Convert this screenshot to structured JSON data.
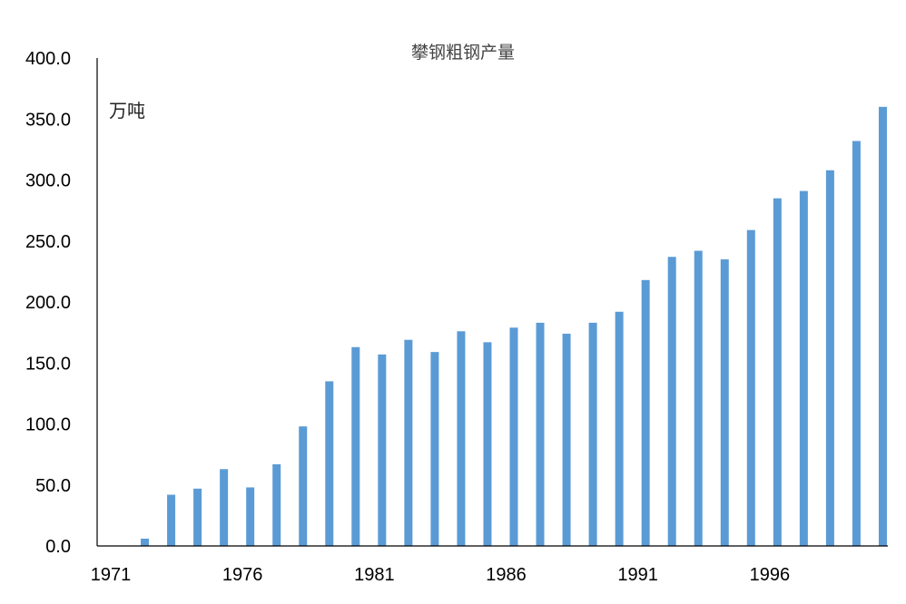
{
  "chart_data": {
    "type": "bar",
    "title": "攀钢粗钢产量",
    "ylabel": "万吨",
    "xlabel": "",
    "ylim": [
      0,
      400
    ],
    "y_ticks": [
      "0.0",
      "50.0",
      "100.0",
      "150.0",
      "200.0",
      "250.0",
      "300.0",
      "350.0",
      "400.0"
    ],
    "x_tick_labels": [
      "1971",
      "1976",
      "1981",
      "1986",
      "1991",
      "1996"
    ],
    "categories": [
      "1971",
      "1972",
      "1973",
      "1974",
      "1975",
      "1976",
      "1977",
      "1978",
      "1979",
      "1980",
      "1981",
      "1982",
      "1983",
      "1984",
      "1985",
      "1986",
      "1987",
      "1988",
      "1989",
      "1990",
      "1991",
      "1992",
      "1993",
      "1994",
      "1995",
      "1996",
      "1997",
      "1998",
      "1999",
      "2000"
    ],
    "values": [
      0,
      6,
      42,
      47,
      63,
      48,
      67,
      98,
      135,
      163,
      157,
      169,
      159,
      176,
      167,
      179,
      183,
      174,
      183,
      192,
      218,
      237,
      242,
      235,
      259,
      285,
      291,
      308,
      332,
      360
    ],
    "bar_color": "#5b9bd5",
    "grid": false,
    "legend": "none"
  }
}
